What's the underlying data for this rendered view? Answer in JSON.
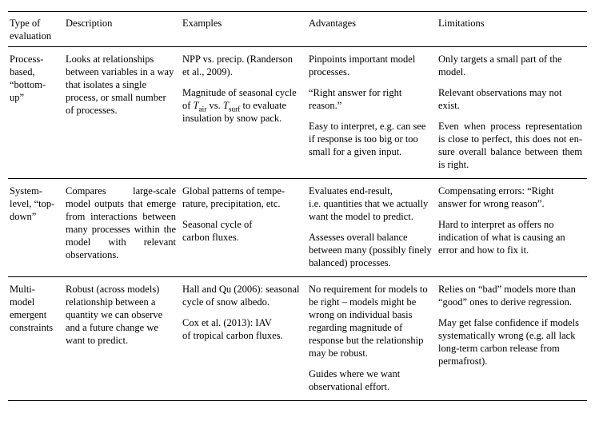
{
  "columns": {
    "type": "Type of evaluation",
    "description": "Description",
    "examples": "Examples",
    "advantages": "Advantages",
    "limitations": "Limitations"
  },
  "rows": [
    {
      "type": "Process-based, “bottom-up”",
      "description": "Looks at rela­tionships between variables in a way that isolates a single process, or small number of processes.",
      "examples": [
        "NPP vs. precip. (Randerson et al., 2009).",
        "Magnitude of seasonal cycle of <i>T</i><sub>air</sub> vs. <i>T</i><sub>surf</sub> to evaluate insulation by snow pack."
      ],
      "advantages": [
        "Pinpoints important model processes.",
        "“Right answer for right reason.”",
        "Easy to interpret, e.g. can see if response is too big or too small for a given input."
      ],
      "limitations": [
        "Only targets a small part of the model.",
        "Relevant observations may not exist.",
        "Even when process representa­tion is close to perfect, this does not en­sure overall balance between them is right."
      ],
      "limitations_justify": [
        false,
        false,
        true
      ]
    },
    {
      "type": "System-level, “top-down”",
      "description": "Compares large-scale model outputs that emerge from interac­tions between many processes within the model with relevant observations.",
      "description_justify": true,
      "examples": [
        "Global patterns of tempe­rature, precipitation, etc.",
        "Seasonal cycle of carbon fluxes."
      ],
      "advantages": [
        "Evaluates end-result, i.e. quantities that we actually want the model to predict.",
        "Assesses overall balance between many (possibly finely balanced) processes."
      ],
      "limitations": [
        "Compensating errors: “Right answer for wrong reason”.",
        "Hard to interpret as offers no indication of what is causing an error and how to fix it."
      ]
    },
    {
      "type": "Multi-model emergent con­straints",
      "description": "Robust (across mo­dels) relationship be­tween a quantity we can observe and a future change we want to predict.",
      "examples": [
        "Hall and Qu (2006): sea­sonal cycle of snow albedo.",
        "Cox et al. (2013): IAV of tropical carbon fluxes."
      ],
      "advantages": [
        "No requirement for models to be right – models might be wrong on individual basis regarding magnitude of response but the rela­tionship may be robust.",
        "Guides where we want observational effort."
      ],
      "limitations": [
        "Relies on “bad” models more than “good” ones to derive regression.",
        "May get false confidence if models systematically wrong (e.g. all lack long-term carbon release from permafrost)."
      ]
    }
  ]
}
